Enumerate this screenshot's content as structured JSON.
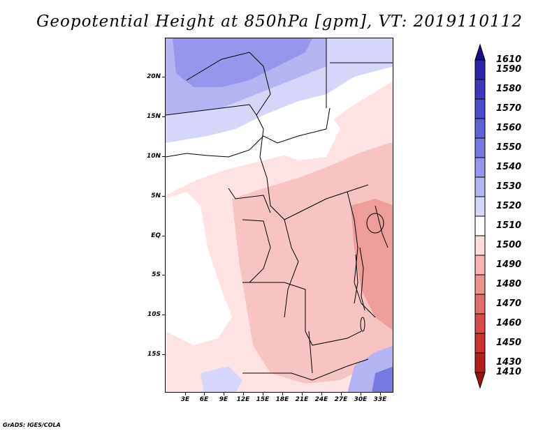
{
  "title": "Geopotential Height at 850hPa [gpm], VT: 2019110112",
  "map": {
    "lat_labels": [
      "20N",
      "15N",
      "10N",
      "5N",
      "EQ",
      "5S",
      "10S",
      "15S"
    ],
    "lon_labels": [
      "3E",
      "6E",
      "9E",
      "12E",
      "15E",
      "18E",
      "21E",
      "24E",
      "27E",
      "30E",
      "33E"
    ]
  },
  "legend": {
    "levels": [
      "1610",
      "1590",
      "1580",
      "1570",
      "1560",
      "1550",
      "1540",
      "1530",
      "1520",
      "1510",
      "1500",
      "1490",
      "1480",
      "1470",
      "1460",
      "1450",
      "1430",
      "1410"
    ],
    "colors": [
      "#1e0a8c",
      "#2d23a8",
      "#3c37bc",
      "#4b4bcc",
      "#5f5fd8",
      "#7878e2",
      "#9696ec",
      "#b4b4f2",
      "#d6d6fa",
      "#ffffff",
      "#fcdcdc",
      "#f6b4b4",
      "#ec9090",
      "#e26c6c",
      "#d84a4a",
      "#cc3030",
      "#b81c1c",
      "#a00f0f"
    ]
  },
  "credit": "GrADS: IGES/COLA"
}
